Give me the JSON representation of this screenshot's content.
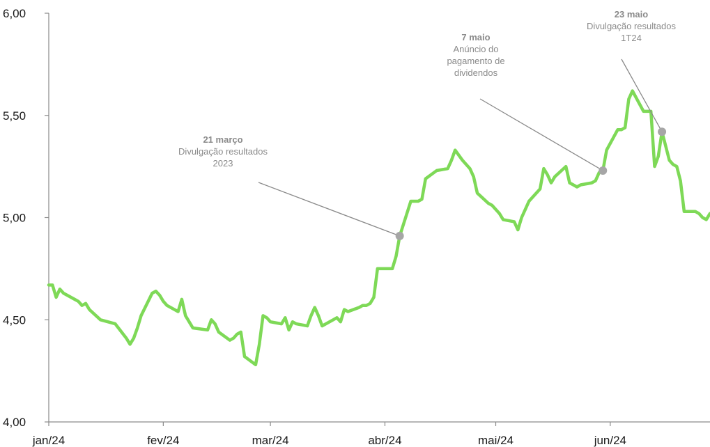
{
  "chart_data": {
    "type": "line",
    "title": "",
    "xlabel": "",
    "ylabel": "",
    "ylim": [
      4.0,
      6.0
    ],
    "y_ticks": [
      "4,00",
      "4,50",
      "5,00",
      "5,50",
      "6,00"
    ],
    "y_tick_values": [
      4.0,
      4.5,
      5.0,
      5.5,
      6.0
    ],
    "x_ticks": [
      "jan/24",
      "fev/24",
      "mar/24",
      "abr/24",
      "mai/24",
      "jun/24"
    ],
    "x_tick_values": [
      "2024-01-01",
      "2024-02-01",
      "2024-03-01",
      "2024-04-01",
      "2024-05-01",
      "2024-06-01"
    ],
    "xlim": [
      "2024-01-01",
      "2024-06-28"
    ],
    "grid": false,
    "legend": "none",
    "series": [
      {
        "color": "#7ed957",
        "points": [
          [
            "2024-01-01",
            4.67
          ],
          [
            "2024-01-02",
            4.67
          ],
          [
            "2024-01-03",
            4.61
          ],
          [
            "2024-01-04",
            4.65
          ],
          [
            "2024-01-05",
            4.63
          ],
          [
            "2024-01-08",
            4.6
          ],
          [
            "2024-01-09",
            4.59
          ],
          [
            "2024-01-10",
            4.57
          ],
          [
            "2024-01-11",
            4.58
          ],
          [
            "2024-01-12",
            4.55
          ],
          [
            "2024-01-15",
            4.5
          ],
          [
            "2024-01-17",
            4.49
          ],
          [
            "2024-01-19",
            4.48
          ],
          [
            "2024-01-22",
            4.41
          ],
          [
            "2024-01-23",
            4.38
          ],
          [
            "2024-01-24",
            4.41
          ],
          [
            "2024-01-25",
            4.46
          ],
          [
            "2024-01-26",
            4.52
          ],
          [
            "2024-01-29",
            4.63
          ],
          [
            "2024-01-30",
            4.64
          ],
          [
            "2024-01-31",
            4.62
          ],
          [
            "2024-02-01",
            4.59
          ],
          [
            "2024-02-02",
            4.57
          ],
          [
            "2024-02-05",
            4.54
          ],
          [
            "2024-02-06",
            4.6
          ],
          [
            "2024-02-07",
            4.52
          ],
          [
            "2024-02-08",
            4.49
          ],
          [
            "2024-02-09",
            4.46
          ],
          [
            "2024-02-13",
            4.45
          ],
          [
            "2024-02-14",
            4.5
          ],
          [
            "2024-02-15",
            4.48
          ],
          [
            "2024-02-16",
            4.44
          ],
          [
            "2024-02-19",
            4.4
          ],
          [
            "2024-02-20",
            4.41
          ],
          [
            "2024-02-21",
            4.43
          ],
          [
            "2024-02-22",
            4.44
          ],
          [
            "2024-02-23",
            4.32
          ],
          [
            "2024-02-26",
            4.28
          ],
          [
            "2024-02-27",
            4.38
          ],
          [
            "2024-02-28",
            4.52
          ],
          [
            "2024-02-29",
            4.51
          ],
          [
            "2024-03-01",
            4.49
          ],
          [
            "2024-03-04",
            4.48
          ],
          [
            "2024-03-05",
            4.51
          ],
          [
            "2024-03-06",
            4.45
          ],
          [
            "2024-03-07",
            4.49
          ],
          [
            "2024-03-08",
            4.48
          ],
          [
            "2024-03-11",
            4.47
          ],
          [
            "2024-03-12",
            4.52
          ],
          [
            "2024-03-13",
            4.56
          ],
          [
            "2024-03-14",
            4.52
          ],
          [
            "2024-03-15",
            4.47
          ],
          [
            "2024-03-18",
            4.5
          ],
          [
            "2024-03-19",
            4.51
          ],
          [
            "2024-03-20",
            4.49
          ],
          [
            "2024-03-21",
            4.55
          ],
          [
            "2024-03-22",
            4.54
          ],
          [
            "2024-03-25",
            4.56
          ],
          [
            "2024-03-26",
            4.57
          ],
          [
            "2024-03-27",
            4.57
          ],
          [
            "2024-03-28",
            4.58
          ],
          [
            "2024-03-29",
            4.61
          ],
          [
            "2024-03-30",
            4.75
          ],
          [
            "2024-04-02",
            4.75
          ],
          [
            "2024-04-03",
            4.75
          ],
          [
            "2024-04-04",
            4.81
          ],
          [
            "2024-04-05",
            4.91
          ],
          [
            "2024-04-08",
            5.08
          ],
          [
            "2024-04-09",
            5.08
          ],
          [
            "2024-04-10",
            5.08
          ],
          [
            "2024-04-11",
            5.09
          ],
          [
            "2024-04-12",
            5.19
          ],
          [
            "2024-04-15",
            5.23
          ],
          [
            "2024-04-18",
            5.24
          ],
          [
            "2024-04-19",
            5.28
          ],
          [
            "2024-04-20",
            5.33
          ],
          [
            "2024-04-22",
            5.28
          ],
          [
            "2024-04-24",
            5.24
          ],
          [
            "2024-04-25",
            5.2
          ],
          [
            "2024-04-26",
            5.12
          ],
          [
            "2024-04-29",
            5.07
          ],
          [
            "2024-04-30",
            5.06
          ],
          [
            "2024-05-01",
            5.04
          ],
          [
            "2024-05-02",
            5.02
          ],
          [
            "2024-05-03",
            4.99
          ],
          [
            "2024-05-06",
            4.98
          ],
          [
            "2024-05-07",
            4.94
          ],
          [
            "2024-05-08",
            5.0
          ],
          [
            "2024-05-09",
            5.04
          ],
          [
            "2024-05-10",
            5.08
          ],
          [
            "2024-05-13",
            5.14
          ],
          [
            "2024-05-14",
            5.24
          ],
          [
            "2024-05-15",
            5.21
          ],
          [
            "2024-05-16",
            5.17
          ],
          [
            "2024-05-17",
            5.2
          ],
          [
            "2024-05-20",
            5.25
          ],
          [
            "2024-05-21",
            5.17
          ],
          [
            "2024-05-22",
            5.16
          ],
          [
            "2024-05-23",
            5.15
          ],
          [
            "2024-05-24",
            5.16
          ],
          [
            "2024-05-27",
            5.17
          ],
          [
            "2024-05-28",
            5.18
          ],
          [
            "2024-05-29",
            5.22
          ],
          [
            "2024-05-30",
            5.23
          ],
          [
            "2024-05-31",
            5.33
          ],
          [
            "2024-06-03",
            5.43
          ],
          [
            "2024-06-04",
            5.43
          ],
          [
            "2024-06-05",
            5.44
          ],
          [
            "2024-06-06",
            5.58
          ],
          [
            "2024-06-07",
            5.62
          ],
          [
            "2024-06-10",
            5.52
          ],
          [
            "2024-06-11",
            5.52
          ],
          [
            "2024-06-12",
            5.52
          ],
          [
            "2024-06-13",
            5.25
          ],
          [
            "2024-06-14",
            5.3
          ],
          [
            "2024-06-15",
            5.42
          ],
          [
            "2024-06-17",
            5.28
          ],
          [
            "2024-06-18",
            5.26
          ],
          [
            "2024-06-19",
            5.25
          ],
          [
            "2024-06-20",
            5.18
          ],
          [
            "2024-06-21",
            5.03
          ],
          [
            "2024-06-24",
            5.03
          ],
          [
            "2024-06-25",
            5.02
          ],
          [
            "2024-06-26",
            5.0
          ],
          [
            "2024-06-27",
            4.99
          ],
          [
            "2024-06-28",
            5.02
          ]
        ]
      }
    ],
    "annotations": [
      {
        "title": "21 março",
        "lines": [
          "Divulgação resultados",
          "2023"
        ],
        "x": "2024-04-05",
        "y": 4.91
      },
      {
        "title": "7 maio",
        "lines": [
          "Anúncio do",
          "pagamento de",
          "dividendos"
        ],
        "x": "2024-05-30",
        "y": 5.23
      },
      {
        "title": "23 maio",
        "lines": [
          "Divulgação resultados",
          "1T24"
        ],
        "x": "2024-06-15",
        "y": 5.42
      }
    ]
  },
  "colors": {
    "line": "#7ed957",
    "axis": "#8a8a8a",
    "annotation": "#8a8a8a",
    "marker": "#a6a6a6"
  }
}
